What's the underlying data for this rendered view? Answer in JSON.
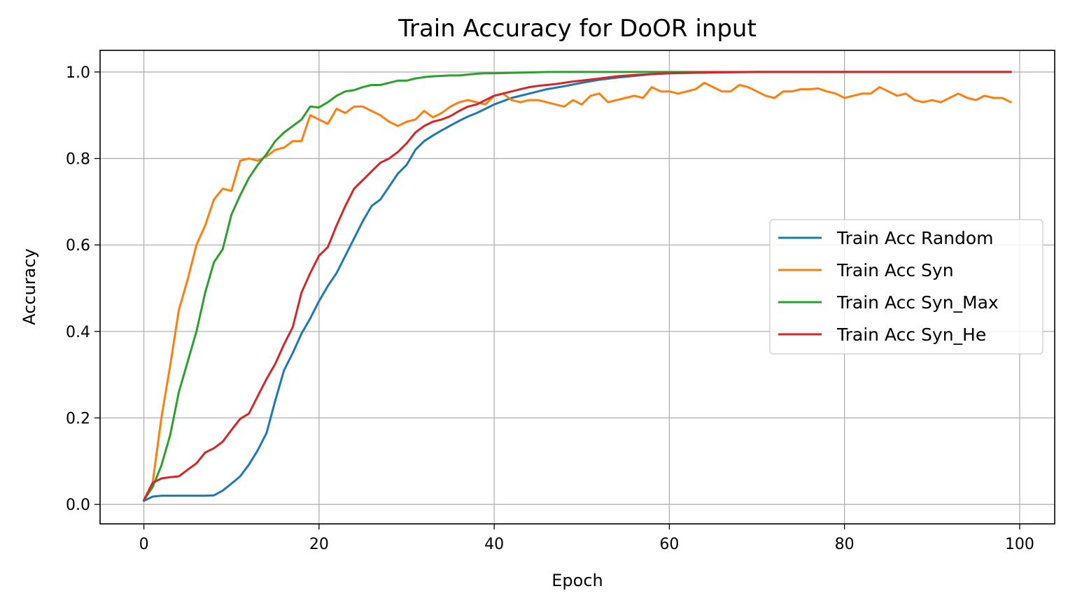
{
  "chart_data": {
    "type": "line",
    "title": "Train Accuracy for DoOR input",
    "xlabel": "Epoch",
    "ylabel": "Accuracy",
    "xlim": [
      -5,
      104
    ],
    "ylim": [
      -0.045,
      1.05
    ],
    "xticks": [
      0,
      20,
      40,
      60,
      80,
      100
    ],
    "yticks": [
      0.0,
      0.2,
      0.4,
      0.6,
      0.8,
      1.0
    ],
    "xtick_labels": [
      "0",
      "20",
      "40",
      "60",
      "80",
      "100"
    ],
    "ytick_labels": [
      "0.0",
      "0.2",
      "0.4",
      "0.6",
      "0.8",
      "1.0"
    ],
    "grid": true,
    "legend_position": "center-right",
    "series": [
      {
        "name": "Train Acc Random",
        "color": "#1f77b4",
        "points": [
          [
            0,
            0.008
          ],
          [
            1,
            0.018
          ],
          [
            2,
            0.02
          ],
          [
            3,
            0.02
          ],
          [
            4,
            0.02
          ],
          [
            5,
            0.02
          ],
          [
            6,
            0.02
          ],
          [
            7,
            0.02
          ],
          [
            8,
            0.021
          ],
          [
            9,
            0.032
          ],
          [
            10,
            0.048
          ],
          [
            11,
            0.065
          ],
          [
            12,
            0.092
          ],
          [
            13,
            0.125
          ],
          [
            14,
            0.165
          ],
          [
            15,
            0.24
          ],
          [
            16,
            0.31
          ],
          [
            17,
            0.35
          ],
          [
            18,
            0.395
          ],
          [
            19,
            0.43
          ],
          [
            20,
            0.47
          ],
          [
            21,
            0.505
          ],
          [
            22,
            0.535
          ],
          [
            23,
            0.575
          ],
          [
            24,
            0.615
          ],
          [
            25,
            0.655
          ],
          [
            26,
            0.69
          ],
          [
            27,
            0.705
          ],
          [
            28,
            0.735
          ],
          [
            29,
            0.765
          ],
          [
            30,
            0.785
          ],
          [
            31,
            0.82
          ],
          [
            32,
            0.84
          ],
          [
            33,
            0.853
          ],
          [
            34,
            0.865
          ],
          [
            35,
            0.876
          ],
          [
            36,
            0.887
          ],
          [
            37,
            0.897
          ],
          [
            38,
            0.905
          ],
          [
            39,
            0.915
          ],
          [
            40,
            0.925
          ],
          [
            42,
            0.94
          ],
          [
            44,
            0.95
          ],
          [
            46,
            0.96
          ],
          [
            48,
            0.967
          ],
          [
            50,
            0.975
          ],
          [
            52,
            0.982
          ],
          [
            54,
            0.987
          ],
          [
            56,
            0.991
          ],
          [
            58,
            0.995
          ],
          [
            60,
            0.997
          ],
          [
            65,
            0.999
          ],
          [
            70,
            1.0
          ],
          [
            80,
            1.0
          ],
          [
            90,
            1.0
          ],
          [
            99,
            1.0
          ]
        ]
      },
      {
        "name": "Train Acc Syn",
        "color": "#ff7f0e",
        "points": [
          [
            0,
            0.01
          ],
          [
            1,
            0.05
          ],
          [
            2,
            0.2
          ],
          [
            3,
            0.32
          ],
          [
            4,
            0.45
          ],
          [
            5,
            0.52
          ],
          [
            6,
            0.6
          ],
          [
            7,
            0.645
          ],
          [
            8,
            0.705
          ],
          [
            9,
            0.73
          ],
          [
            10,
            0.725
          ],
          [
            11,
            0.795
          ],
          [
            12,
            0.8
          ],
          [
            13,
            0.795
          ],
          [
            14,
            0.805
          ],
          [
            15,
            0.82
          ],
          [
            16,
            0.825
          ],
          [
            17,
            0.84
          ],
          [
            18,
            0.84
          ],
          [
            19,
            0.9
          ],
          [
            20,
            0.89
          ],
          [
            21,
            0.88
          ],
          [
            22,
            0.915
          ],
          [
            23,
            0.905
          ],
          [
            24,
            0.92
          ],
          [
            25,
            0.92
          ],
          [
            26,
            0.91
          ],
          [
            27,
            0.9
          ],
          [
            28,
            0.885
          ],
          [
            29,
            0.875
          ],
          [
            30,
            0.885
          ],
          [
            31,
            0.89
          ],
          [
            32,
            0.91
          ],
          [
            33,
            0.895
          ],
          [
            34,
            0.905
          ],
          [
            35,
            0.92
          ],
          [
            36,
            0.93
          ],
          [
            37,
            0.935
          ],
          [
            38,
            0.93
          ],
          [
            39,
            0.925
          ],
          [
            40,
            0.945
          ],
          [
            41,
            0.95
          ],
          [
            42,
            0.935
          ],
          [
            43,
            0.93
          ],
          [
            44,
            0.935
          ],
          [
            45,
            0.935
          ],
          [
            46,
            0.93
          ],
          [
            47,
            0.925
          ],
          [
            48,
            0.92
          ],
          [
            49,
            0.935
          ],
          [
            50,
            0.925
          ],
          [
            51,
            0.945
          ],
          [
            52,
            0.95
          ],
          [
            53,
            0.93
          ],
          [
            54,
            0.935
          ],
          [
            55,
            0.94
          ],
          [
            56,
            0.945
          ],
          [
            57,
            0.94
          ],
          [
            58,
            0.965
          ],
          [
            59,
            0.955
          ],
          [
            60,
            0.955
          ],
          [
            61,
            0.95
          ],
          [
            62,
            0.955
          ],
          [
            63,
            0.96
          ],
          [
            64,
            0.975
          ],
          [
            65,
            0.965
          ],
          [
            66,
            0.955
          ],
          [
            67,
            0.955
          ],
          [
            68,
            0.97
          ],
          [
            69,
            0.965
          ],
          [
            70,
            0.955
          ],
          [
            71,
            0.945
          ],
          [
            72,
            0.94
          ],
          [
            73,
            0.955
          ],
          [
            74,
            0.955
          ],
          [
            75,
            0.96
          ],
          [
            76,
            0.96
          ],
          [
            77,
            0.962
          ],
          [
            78,
            0.955
          ],
          [
            79,
            0.95
          ],
          [
            80,
            0.94
          ],
          [
            81,
            0.945
          ],
          [
            82,
            0.95
          ],
          [
            83,
            0.95
          ],
          [
            84,
            0.965
          ],
          [
            85,
            0.955
          ],
          [
            86,
            0.945
          ],
          [
            87,
            0.95
          ],
          [
            88,
            0.935
          ],
          [
            89,
            0.93
          ],
          [
            90,
            0.935
          ],
          [
            91,
            0.93
          ],
          [
            92,
            0.94
          ],
          [
            93,
            0.95
          ],
          [
            94,
            0.94
          ],
          [
            95,
            0.935
          ],
          [
            96,
            0.945
          ],
          [
            97,
            0.94
          ],
          [
            98,
            0.94
          ],
          [
            99,
            0.93
          ]
        ]
      },
      {
        "name": "Train Acc Syn_Max",
        "color": "#2ca02c",
        "points": [
          [
            0,
            0.01
          ],
          [
            1,
            0.04
          ],
          [
            2,
            0.09
          ],
          [
            3,
            0.16
          ],
          [
            4,
            0.26
          ],
          [
            5,
            0.33
          ],
          [
            6,
            0.4
          ],
          [
            7,
            0.49
          ],
          [
            8,
            0.56
          ],
          [
            9,
            0.59
          ],
          [
            10,
            0.67
          ],
          [
            11,
            0.715
          ],
          [
            12,
            0.755
          ],
          [
            13,
            0.785
          ],
          [
            14,
            0.81
          ],
          [
            15,
            0.84
          ],
          [
            16,
            0.86
          ],
          [
            17,
            0.875
          ],
          [
            18,
            0.89
          ],
          [
            19,
            0.92
          ],
          [
            20,
            0.918
          ],
          [
            21,
            0.93
          ],
          [
            22,
            0.945
          ],
          [
            23,
            0.955
          ],
          [
            24,
            0.958
          ],
          [
            25,
            0.965
          ],
          [
            26,
            0.97
          ],
          [
            27,
            0.97
          ],
          [
            28,
            0.975
          ],
          [
            29,
            0.98
          ],
          [
            30,
            0.98
          ],
          [
            31,
            0.985
          ],
          [
            32,
            0.988
          ],
          [
            33,
            0.99
          ],
          [
            34,
            0.991
          ],
          [
            35,
            0.992
          ],
          [
            36,
            0.992
          ],
          [
            37,
            0.994
          ],
          [
            38,
            0.996
          ],
          [
            39,
            0.997
          ],
          [
            40,
            0.997
          ],
          [
            42,
            0.998
          ],
          [
            44,
            0.999
          ],
          [
            46,
            1.0
          ],
          [
            50,
            1.0
          ],
          [
            60,
            1.0
          ],
          [
            70,
            1.0
          ],
          [
            80,
            1.0
          ],
          [
            90,
            1.0
          ],
          [
            99,
            1.0
          ]
        ]
      },
      {
        "name": "Train Acc Syn_He",
        "color": "#d62728",
        "points": [
          [
            0,
            0.01
          ],
          [
            1,
            0.05
          ],
          [
            2,
            0.06
          ],
          [
            3,
            0.063
          ],
          [
            4,
            0.065
          ],
          [
            5,
            0.08
          ],
          [
            6,
            0.095
          ],
          [
            7,
            0.12
          ],
          [
            8,
            0.13
          ],
          [
            9,
            0.145
          ],
          [
            10,
            0.172
          ],
          [
            11,
            0.198
          ],
          [
            12,
            0.21
          ],
          [
            13,
            0.25
          ],
          [
            14,
            0.29
          ],
          [
            15,
            0.325
          ],
          [
            16,
            0.37
          ],
          [
            17,
            0.41
          ],
          [
            18,
            0.49
          ],
          [
            19,
            0.535
          ],
          [
            20,
            0.575
          ],
          [
            21,
            0.595
          ],
          [
            22,
            0.645
          ],
          [
            23,
            0.69
          ],
          [
            24,
            0.73
          ],
          [
            25,
            0.75
          ],
          [
            26,
            0.77
          ],
          [
            27,
            0.79
          ],
          [
            28,
            0.8
          ],
          [
            29,
            0.815
          ],
          [
            30,
            0.835
          ],
          [
            31,
            0.86
          ],
          [
            32,
            0.875
          ],
          [
            33,
            0.885
          ],
          [
            34,
            0.89
          ],
          [
            35,
            0.898
          ],
          [
            36,
            0.91
          ],
          [
            37,
            0.92
          ],
          [
            38,
            0.925
          ],
          [
            39,
            0.935
          ],
          [
            40,
            0.945
          ],
          [
            41,
            0.95
          ],
          [
            42,
            0.955
          ],
          [
            43,
            0.96
          ],
          [
            44,
            0.965
          ],
          [
            45,
            0.968
          ],
          [
            46,
            0.97
          ],
          [
            47,
            0.972
          ],
          [
            48,
            0.975
          ],
          [
            49,
            0.978
          ],
          [
            50,
            0.98
          ],
          [
            52,
            0.985
          ],
          [
            54,
            0.99
          ],
          [
            56,
            0.993
          ],
          [
            58,
            0.995
          ],
          [
            60,
            0.997
          ],
          [
            65,
            0.999
          ],
          [
            70,
            1.0
          ],
          [
            80,
            1.0
          ],
          [
            90,
            1.0
          ],
          [
            99,
            1.0
          ]
        ]
      }
    ]
  }
}
